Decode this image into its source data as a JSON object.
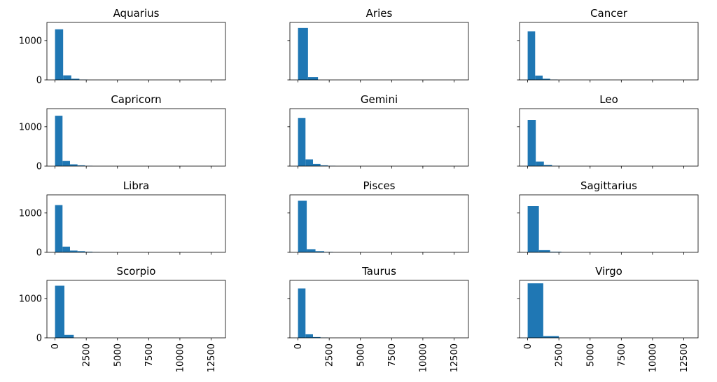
{
  "chart_data": {
    "type": "histogram",
    "layout": {
      "rows": 4,
      "cols": 3,
      "sharex": true,
      "sharey": true
    },
    "xlim": [
      -650,
      13650
    ],
    "ylim": [
      0,
      1460
    ],
    "x_ticks": [
      0,
      2500,
      5000,
      7500,
      10000,
      12500
    ],
    "x_tick_labels": [
      "0",
      "2500",
      "5000",
      "7500",
      "10000",
      "12500"
    ],
    "y_ticks": [
      0,
      1000
    ],
    "y_tick_labels": [
      "0",
      "1000"
    ],
    "bar_color": "#1f77b4",
    "grid": false,
    "panels": [
      {
        "title": "Aquarius",
        "bin_edges": [
          0,
          650,
          1300,
          1950,
          2600
        ],
        "counts": [
          1285,
          115,
          30,
          8
        ]
      },
      {
        "title": "Aries",
        "bin_edges": [
          0,
          800,
          1600
        ],
        "counts": [
          1320,
          70
        ]
      },
      {
        "title": "Cancer",
        "bin_edges": [
          0,
          600,
          1200,
          1800,
          2400
        ],
        "counts": [
          1235,
          110,
          30,
          8
        ]
      },
      {
        "title": "Capricorn",
        "bin_edges": [
          0,
          600,
          1200,
          1800,
          2400,
          3000
        ],
        "counts": [
          1280,
          130,
          45,
          20,
          8
        ]
      },
      {
        "title": "Gemini",
        "bin_edges": [
          0,
          600,
          1200,
          1800,
          2400,
          3000
        ],
        "counts": [
          1225,
          170,
          55,
          20,
          8
        ]
      },
      {
        "title": "Leo",
        "bin_edges": [
          0,
          650,
          1300,
          1950,
          2600
        ],
        "counts": [
          1175,
          115,
          30,
          8
        ]
      },
      {
        "title": "Libra",
        "bin_edges": [
          0,
          600,
          1200,
          1800,
          2400,
          3000,
          3600
        ],
        "counts": [
          1200,
          145,
          45,
          30,
          15,
          8
        ]
      },
      {
        "title": "Pisces",
        "bin_edges": [
          0,
          700,
          1400,
          2100,
          2800
        ],
        "counts": [
          1310,
          80,
          30,
          10
        ]
      },
      {
        "title": "Sagittarius",
        "bin_edges": [
          0,
          900,
          1800,
          2700
        ],
        "counts": [
          1175,
          55,
          15
        ]
      },
      {
        "title": "Scorpio",
        "bin_edges": [
          0,
          750,
          1500
        ],
        "counts": [
          1325,
          75
        ]
      },
      {
        "title": "Taurus",
        "bin_edges": [
          0,
          600,
          1200,
          1800,
          2400
        ],
        "counts": [
          1255,
          90,
          20,
          6
        ]
      },
      {
        "title": "Virgo",
        "bin_edges": [
          0,
          1250,
          2500
        ],
        "counts": [
          1385,
          45
        ]
      }
    ]
  }
}
